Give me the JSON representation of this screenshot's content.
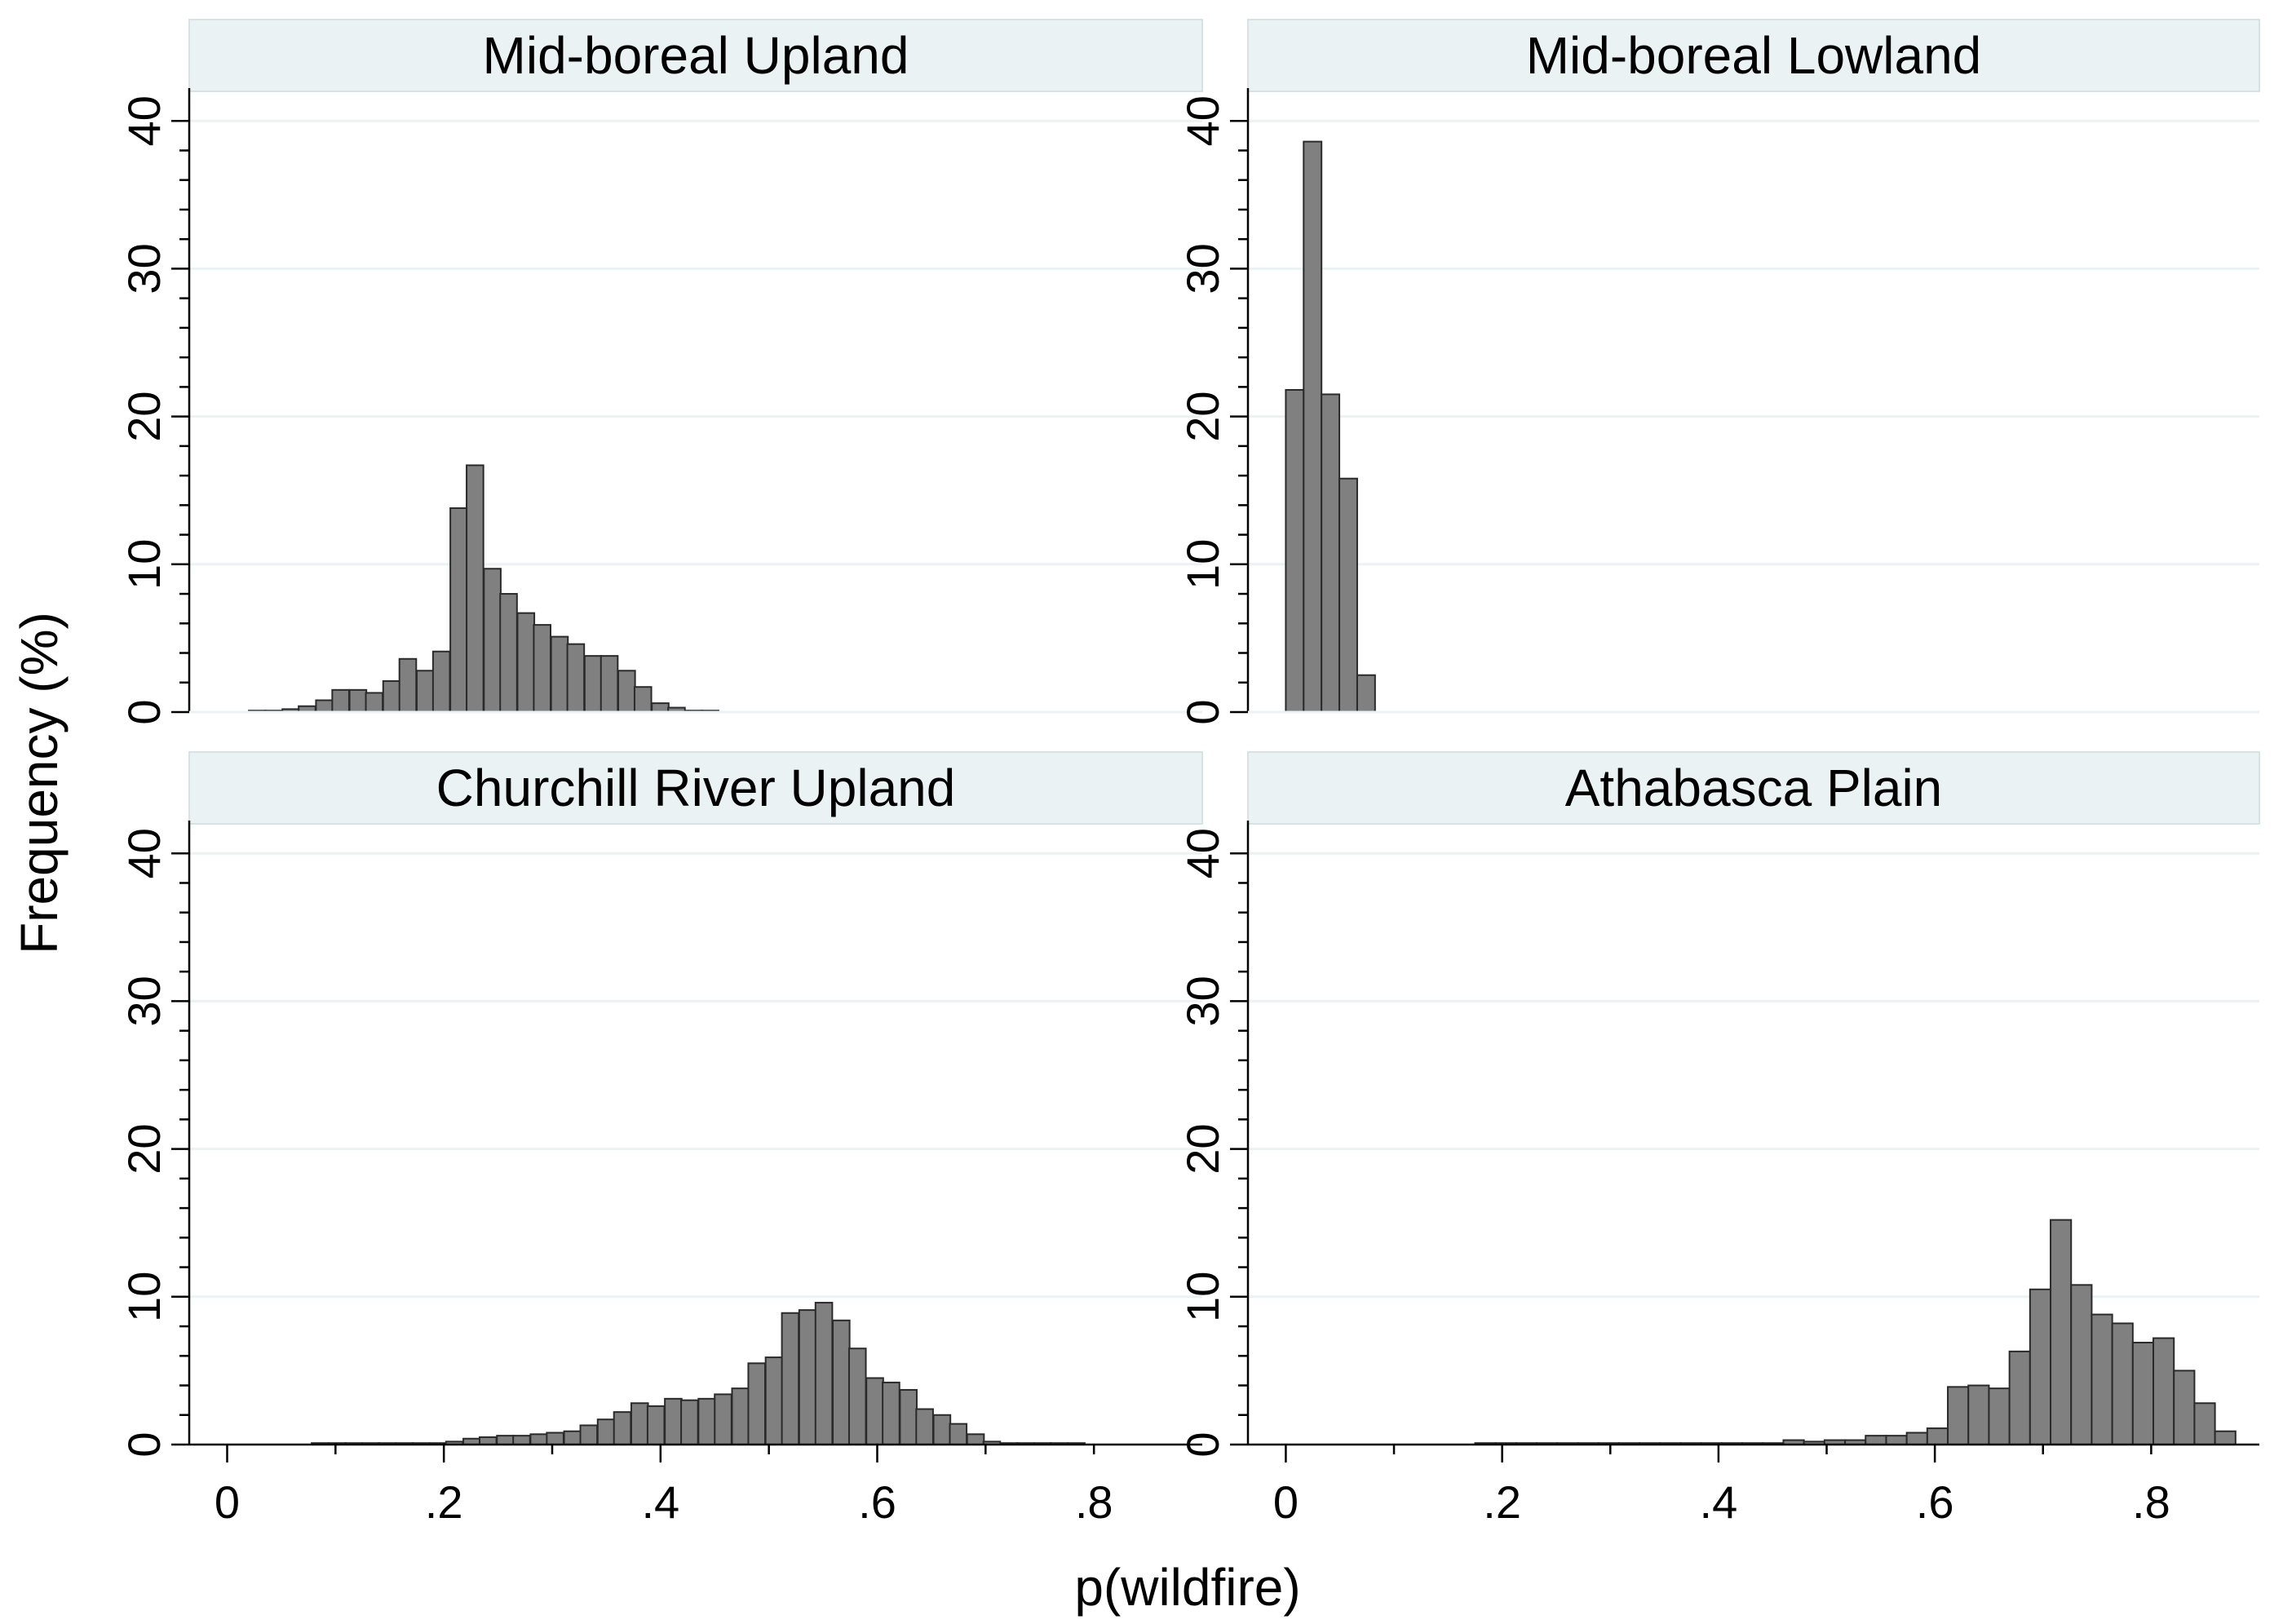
{
  "chart_data": {
    "type": "bar",
    "layout": "2x2 facet histogram",
    "xlabel": "p(wildfire)",
    "ylabel": "Frequency (%)",
    "ylim": [
      0,
      42
    ],
    "yticks": [
      0,
      10,
      20,
      30,
      40
    ],
    "yticklabels": [
      "0",
      "10",
      "20",
      "30",
      "40"
    ],
    "xlim": [
      -0.035,
      0.9
    ],
    "xticks": [
      0,
      0.2,
      0.4,
      0.6,
      0.8
    ],
    "xticklabels": [
      "0",
      ".2",
      ".4",
      ".6",
      ".8"
    ],
    "bar_color": "#808080",
    "bar_edge": "#2a2a2a",
    "panels": [
      {
        "title": "Mid-boreal Upland",
        "bin_width": 0.0155,
        "x": [
          0.02,
          0.035,
          0.051,
          0.066,
          0.082,
          0.097,
          0.113,
          0.128,
          0.144,
          0.159,
          0.175,
          0.19,
          0.206,
          0.221,
          0.237,
          0.252,
          0.268,
          0.283,
          0.299,
          0.314,
          0.33,
          0.345,
          0.361,
          0.376,
          0.392,
          0.407,
          0.423,
          0.438
        ],
        "values": [
          0.1,
          0.1,
          0.2,
          0.4,
          0.8,
          1.5,
          1.5,
          1.3,
          2.1,
          3.6,
          2.8,
          4.1,
          13.8,
          16.7,
          9.7,
          8.0,
          6.7,
          5.9,
          5.1,
          4.6,
          3.8,
          3.8,
          2.8,
          1.7,
          0.6,
          0.3,
          0.1,
          0.1
        ]
      },
      {
        "title": "Mid-boreal Lowland",
        "bin_width": 0.0165,
        "x": [
          0.0,
          0.0165,
          0.033,
          0.0495,
          0.066
        ],
        "values": [
          21.8,
          38.6,
          21.5,
          15.8,
          2.5
        ]
      },
      {
        "title": "Churchill River Upland",
        "bin_width": 0.0155,
        "x": [
          0.078,
          0.094,
          0.109,
          0.125,
          0.14,
          0.156,
          0.171,
          0.187,
          0.202,
          0.218,
          0.233,
          0.249,
          0.264,
          0.28,
          0.295,
          0.311,
          0.326,
          0.342,
          0.357,
          0.373,
          0.388,
          0.404,
          0.419,
          0.435,
          0.45,
          0.466,
          0.481,
          0.497,
          0.512,
          0.528,
          0.543,
          0.559,
          0.574,
          0.59,
          0.605,
          0.621,
          0.636,
          0.652,
          0.667,
          0.683,
          0.698,
          0.714,
          0.729,
          0.745,
          0.76,
          0.776
        ],
        "values": [
          0.1,
          0.1,
          0.1,
          0.1,
          0.1,
          0.1,
          0.1,
          0.1,
          0.2,
          0.4,
          0.5,
          0.6,
          0.6,
          0.7,
          0.8,
          0.9,
          1.3,
          1.7,
          2.2,
          2.8,
          2.6,
          3.1,
          3.0,
          3.1,
          3.4,
          3.8,
          5.5,
          5.9,
          8.9,
          9.1,
          9.6,
          8.4,
          6.5,
          4.5,
          4.2,
          3.7,
          2.4,
          2.0,
          1.4,
          0.7,
          0.2,
          0.1,
          0.1,
          0.1,
          0.1,
          0.1
        ]
      },
      {
        "title": "Athabasca Plain",
        "bin_width": 0.019,
        "x": [
          0.175,
          0.194,
          0.213,
          0.232,
          0.251,
          0.27,
          0.289,
          0.308,
          0.327,
          0.346,
          0.365,
          0.384,
          0.403,
          0.422,
          0.441,
          0.46,
          0.479,
          0.498,
          0.517,
          0.536,
          0.555,
          0.574,
          0.593,
          0.612,
          0.631,
          0.65,
          0.669,
          0.688,
          0.707,
          0.726,
          0.745,
          0.764,
          0.783,
          0.802,
          0.821,
          0.84,
          0.859
        ],
        "values": [
          0.1,
          0.1,
          0.1,
          0.1,
          0.1,
          0.1,
          0.1,
          0.1,
          0.1,
          0.1,
          0.1,
          0.1,
          0.1,
          0.1,
          0.1,
          0.3,
          0.2,
          0.3,
          0.3,
          0.6,
          0.6,
          0.8,
          1.1,
          3.9,
          4.0,
          3.8,
          6.3,
          10.5,
          15.2,
          10.8,
          8.8,
          8.2,
          6.9,
          7.2,
          5.0,
          2.8,
          0.9
        ]
      }
    ]
  }
}
